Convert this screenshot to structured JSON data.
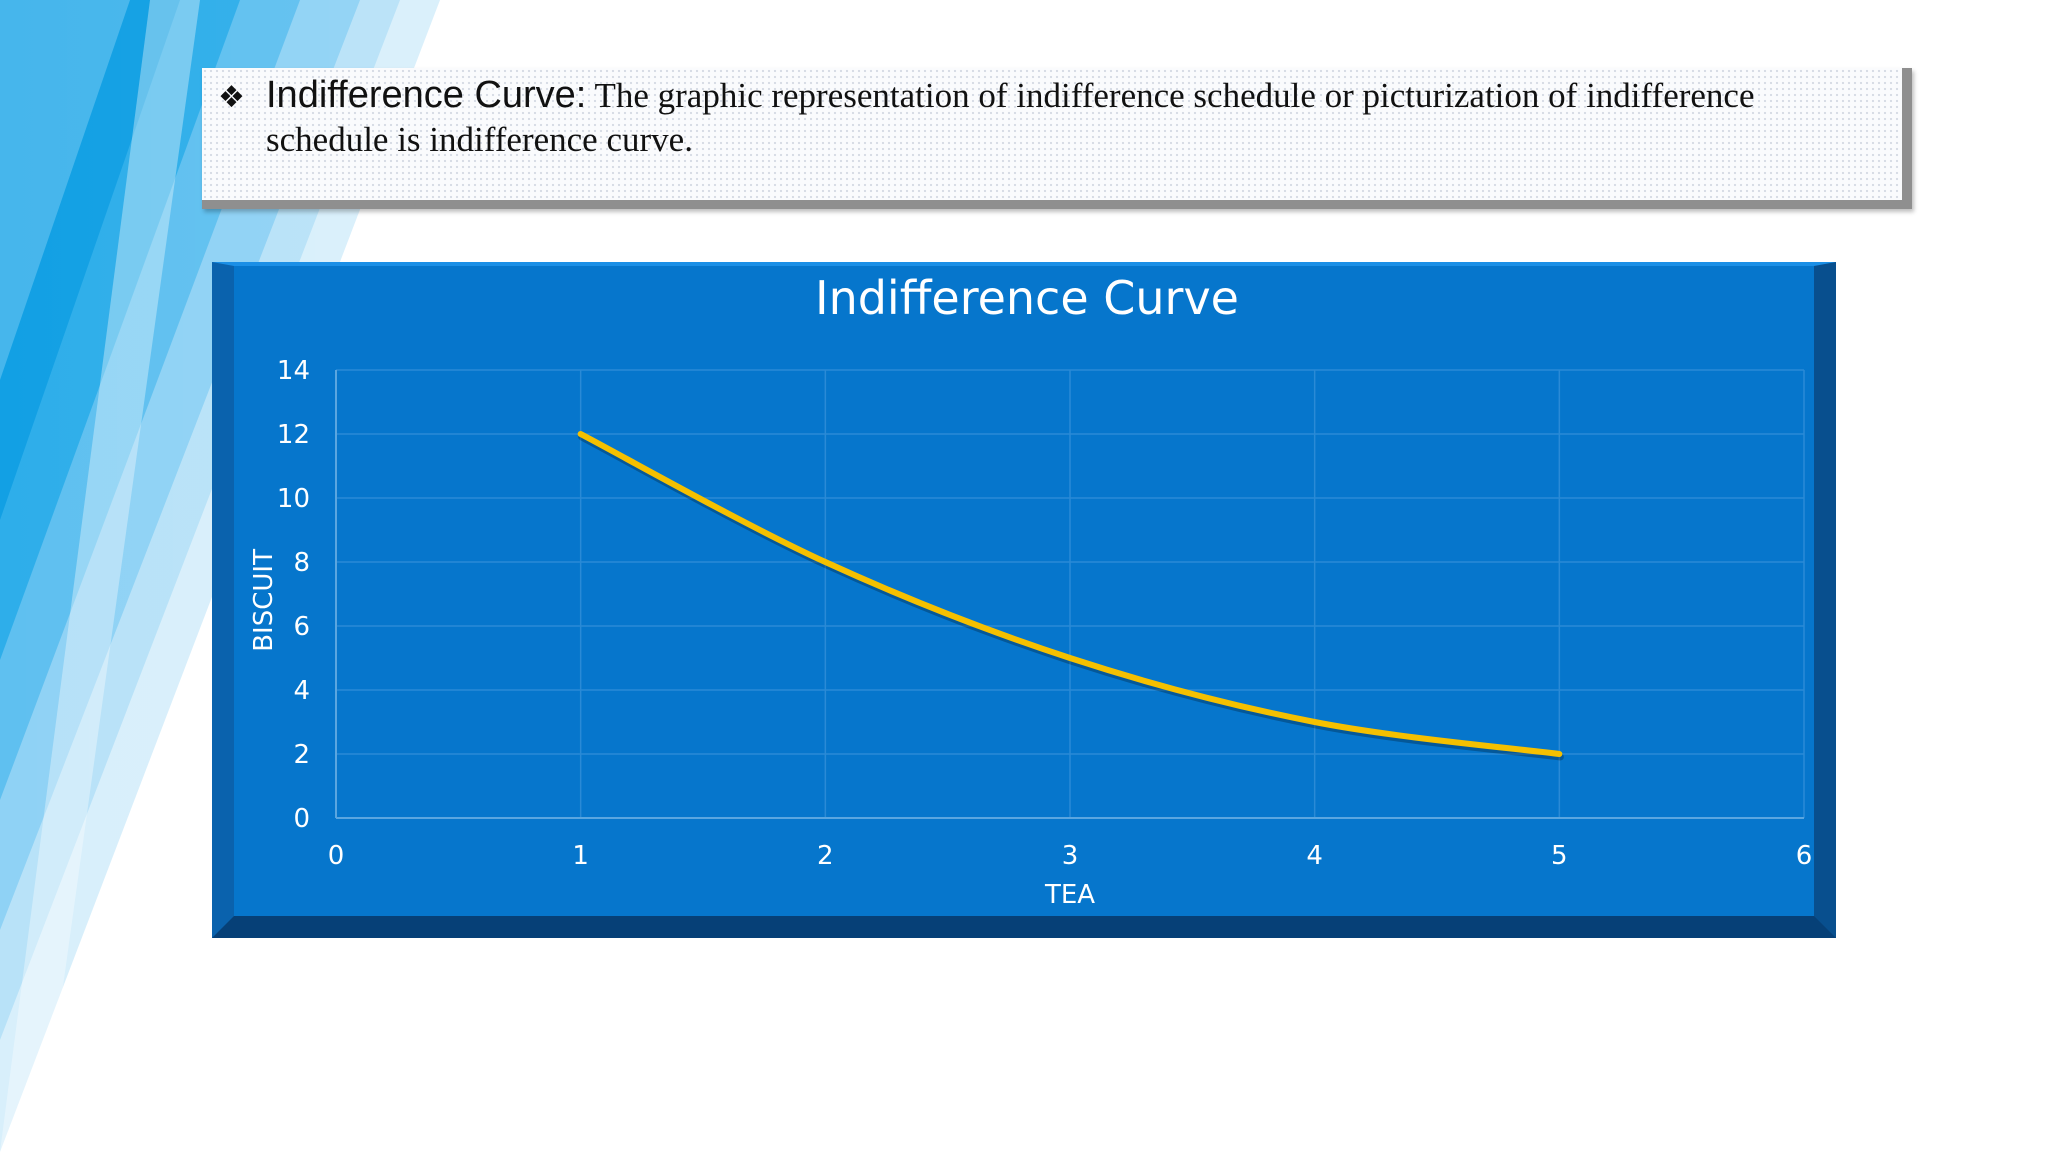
{
  "definition": {
    "bullet": "❖",
    "term": "Indifference Curve:",
    "text_line1": " The graphic representation of indifference schedule or picturization of indifference",
    "text_line2": "schedule is indifference curve."
  },
  "colors": {
    "chart_bg": "#0676cc",
    "curve": "#f5c000",
    "text": "#ffffff"
  },
  "chart_data": {
    "type": "line",
    "title": "Indifference Curve",
    "xlabel": "TEA",
    "ylabel": "BISCUIT",
    "xlim": [
      0,
      6
    ],
    "ylim": [
      0,
      14
    ],
    "xticks": [
      0,
      1,
      2,
      3,
      4,
      5,
      6
    ],
    "yticks": [
      0,
      2,
      4,
      6,
      8,
      10,
      12,
      14
    ],
    "grid": true,
    "smooth": true,
    "series": [
      {
        "x": [
          1,
          2,
          3,
          4,
          5
        ],
        "y": [
          12,
          8,
          5,
          3,
          2
        ]
      }
    ]
  }
}
